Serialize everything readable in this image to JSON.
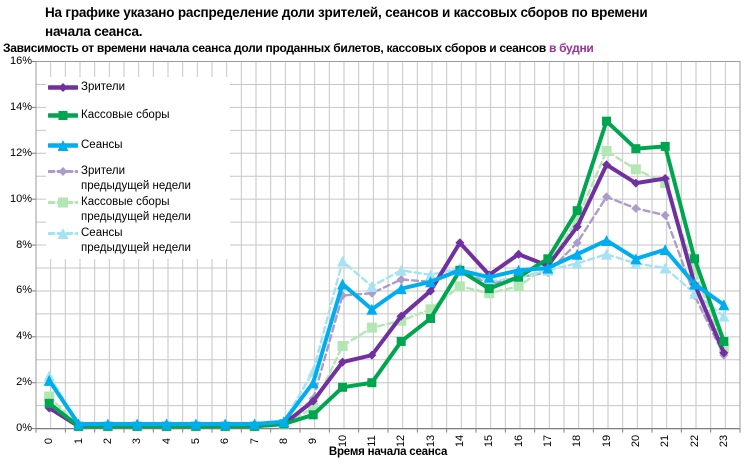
{
  "header": {
    "title": "На графике указано распределение доли зрителей, сеансов и кассовых сборов по времени начала сеанса.",
    "subtitle_main": "Зависимость от времени начала сеанса доли проданных билетов, кассовых сборов и сеансов ",
    "subtitle_highlight": "в будни",
    "subtitle_highlight_color": "#993399"
  },
  "axes": {
    "x_title": "Время начала сеанса",
    "x_ticks": [
      "0",
      "1",
      "2",
      "3",
      "4",
      "5",
      "6",
      "7",
      "8",
      "9",
      "10",
      "11",
      "12",
      "13",
      "14",
      "15",
      "16",
      "17",
      "18",
      "19",
      "20",
      "21",
      "22",
      "23"
    ],
    "y_ticks": [
      "0%",
      "2%",
      "4%",
      "6%",
      "8%",
      "10%",
      "12%",
      "14%",
      "16%"
    ]
  },
  "chart_data": {
    "type": "line",
    "title": "Зависимость от времени начала сеанса доли проданных билетов, кассовых сборов и сеансов в будни",
    "xlabel": "Время начала сеанса",
    "ylabel": "",
    "x": [
      0,
      1,
      2,
      3,
      4,
      5,
      6,
      7,
      8,
      9,
      10,
      11,
      12,
      13,
      14,
      15,
      16,
      17,
      18,
      19,
      20,
      21,
      22,
      23
    ],
    "ylim": [
      0,
      16
    ],
    "y_unit": "%",
    "grid": "on, horizontal every 1%, vertical every 0.5h",
    "legend_position": "top-left inside plot",
    "series": [
      {
        "name": "Зрители предыдущей недели",
        "color": "#AC9CC9",
        "marker": "diamond",
        "marker_size": 4.5,
        "width": 2.4,
        "dash": "6 4",
        "values": [
          1.0,
          0.1,
          0.1,
          0.1,
          0.1,
          0.1,
          0.1,
          0.1,
          0.2,
          1.3,
          5.8,
          5.9,
          6.5,
          6.4,
          7.0,
          6.3,
          6.6,
          6.8,
          8.1,
          10.1,
          9.6,
          9.3,
          5.8,
          3.2
        ]
      },
      {
        "name": "Кассовые сборы предыдущей недели",
        "color": "#B2E6B2",
        "marker": "square",
        "marker_size": 5,
        "width": 2.4,
        "dash": "6 4",
        "values": [
          1.4,
          0.1,
          0.1,
          0.1,
          0.1,
          0.1,
          0.1,
          0.1,
          0.2,
          0.9,
          3.6,
          4.4,
          4.7,
          5.2,
          6.2,
          5.9,
          6.2,
          7.1,
          9.1,
          12.1,
          11.3,
          10.7,
          6.9,
          3.5
        ]
      },
      {
        "name": "Сеансы предыдущей недели",
        "color": "#A5E3F3",
        "marker": "triangle",
        "marker_size": 5.5,
        "width": 2.4,
        "dash": "6 4",
        "values": [
          2.3,
          0.2,
          0.2,
          0.2,
          0.2,
          0.2,
          0.2,
          0.2,
          0.3,
          2.5,
          7.3,
          6.2,
          6.9,
          6.7,
          7.0,
          6.4,
          6.6,
          6.9,
          7.2,
          7.6,
          7.2,
          7.0,
          5.9,
          4.9
        ]
      },
      {
        "name": "Зрители",
        "color": "#7030A0",
        "marker": "diamond",
        "marker_size": 4.5,
        "width": 4,
        "dash": null,
        "values": [
          0.9,
          0.1,
          0.1,
          0.1,
          0.1,
          0.1,
          0.1,
          0.1,
          0.2,
          1.2,
          2.9,
          3.2,
          4.9,
          6.0,
          8.1,
          6.7,
          7.6,
          7.1,
          8.8,
          11.5,
          10.7,
          10.9,
          6.3,
          3.3
        ]
      },
      {
        "name": "Кассовые сборы",
        "color": "#00A550",
        "marker": "square",
        "marker_size": 4.5,
        "width": 4,
        "dash": null,
        "values": [
          1.1,
          0.1,
          0.1,
          0.1,
          0.1,
          0.1,
          0.1,
          0.1,
          0.2,
          0.6,
          1.8,
          2.0,
          3.8,
          4.8,
          6.9,
          6.1,
          6.6,
          7.4,
          9.5,
          13.4,
          12.2,
          12.3,
          7.4,
          3.8
        ]
      },
      {
        "name": "Сеансы",
        "color": "#00AEEF",
        "marker": "triangle",
        "marker_size": 5.5,
        "width": 4,
        "dash": null,
        "values": [
          2.1,
          0.2,
          0.2,
          0.2,
          0.2,
          0.2,
          0.2,
          0.2,
          0.3,
          2.0,
          6.3,
          5.2,
          6.1,
          6.4,
          6.9,
          6.6,
          6.9,
          7.0,
          7.6,
          8.2,
          7.4,
          7.8,
          6.3,
          5.4
        ]
      }
    ]
  },
  "legend": {
    "items": [
      {
        "series": 3,
        "line1": "Зрители",
        "line2": ""
      },
      {
        "series": 4,
        "line1": "Кассовые сборы",
        "line2": ""
      },
      {
        "series": 5,
        "line1": "Сеансы",
        "line2": ""
      },
      {
        "series": 0,
        "line1": "Зрители",
        "line2": "предыдущей недели"
      },
      {
        "series": 1,
        "line1": "Кассовые сборы",
        "line2": "предыдущей недели"
      },
      {
        "series": 2,
        "line1": "Сеансы",
        "line2": "предыдущей недели"
      }
    ]
  }
}
